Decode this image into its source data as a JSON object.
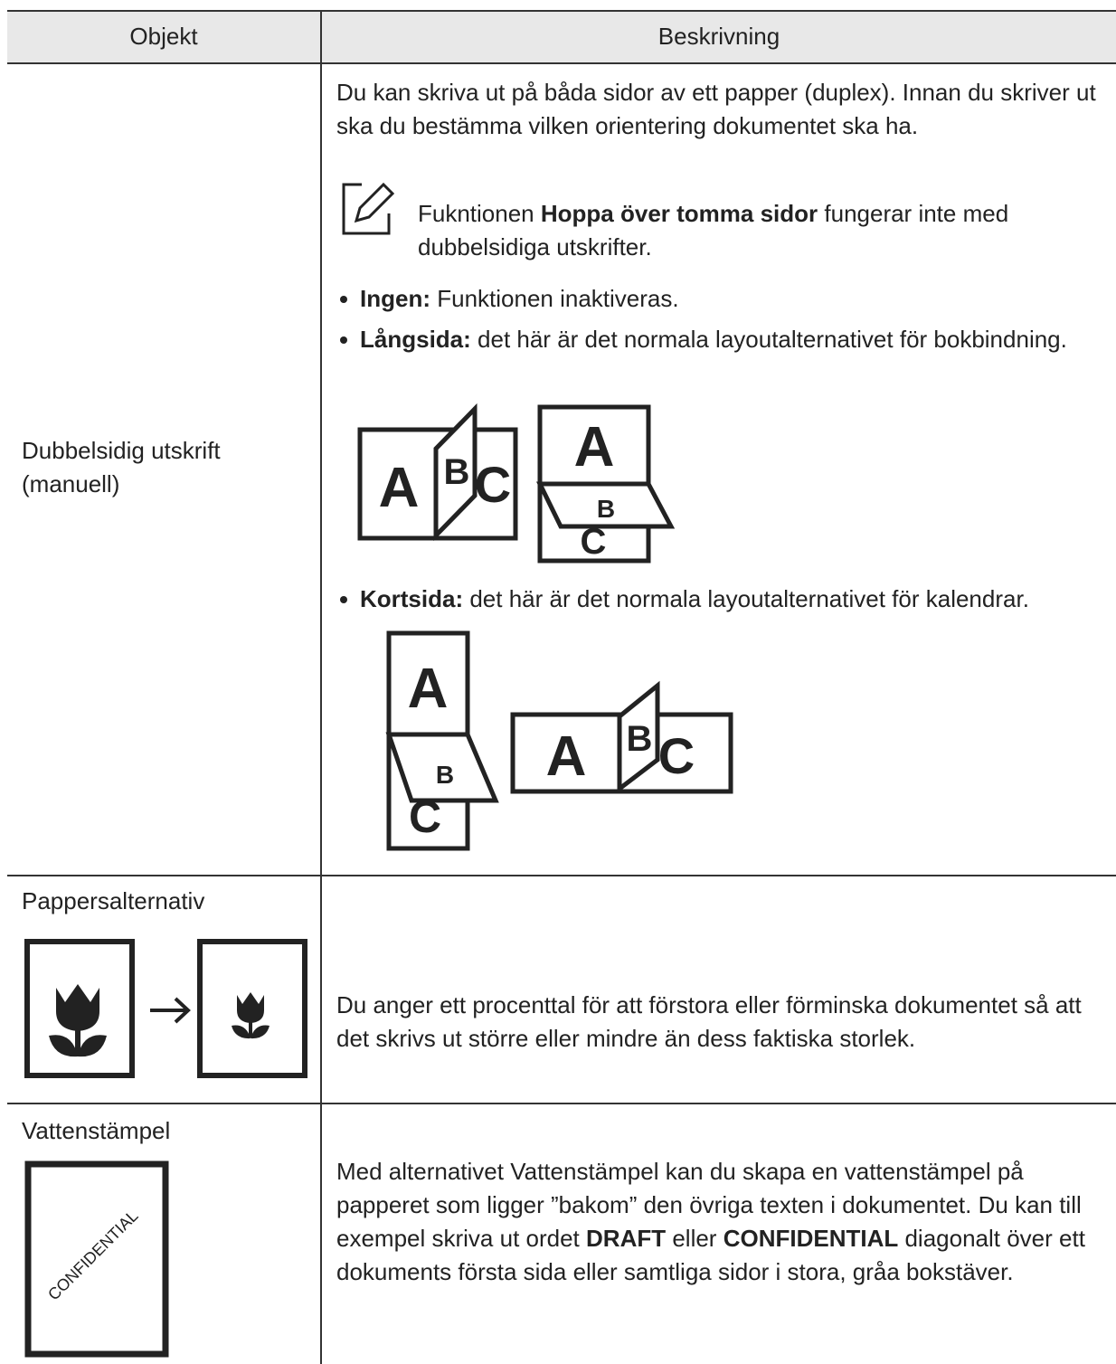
{
  "table": {
    "headers": [
      "Objekt",
      "Beskrivning"
    ],
    "rows": [
      {
        "item": "Dubbelsidig utskrift (manuell)",
        "intro": "Du kan skriva ut på båda sidor av ett papper (duplex). Innan du skriver ut ska du bestämma vilken orientering dokumentet ska ha.",
        "note": {
          "before": "Fukntionen ",
          "bold": "Hoppa över tomma sidor",
          "after": " fungerar inte med dubbelsidiga utskrifter."
        },
        "options": [
          {
            "label": "Ingen:",
            "text": " Funktionen inaktiveras."
          },
          {
            "label": "Långsida:",
            "text": " det här är det normala layoutalternativet för bokbindning."
          },
          {
            "label": "Kortsida:",
            "text": " det här är det normala layoutalternativet för kalendrar."
          }
        ]
      },
      {
        "item": "Pappersalternativ",
        "description": "Du anger ett procenttal för att förstora eller förminska dokumentet så att det skrivs ut större eller mindre än dess faktiska storlek."
      },
      {
        "item": "Vattenstämpel",
        "description": [
          "Med alternativet Vattenstämpel kan du skapa en vattenstämpel på papperet som ligger ”bakom” den övriga texten i dokumentet. Du kan till exempel skriva ut ordet ",
          "DRAFT",
          " eller ",
          "CONFIDENTIAL",
          " diagonalt över ett dokuments första sida eller samtliga sidor i stora, gråa bokstäver."
        ],
        "watermark": "CONFIDENTIAL"
      }
    ]
  },
  "illustration_letters": [
    "A",
    "B",
    "C"
  ]
}
